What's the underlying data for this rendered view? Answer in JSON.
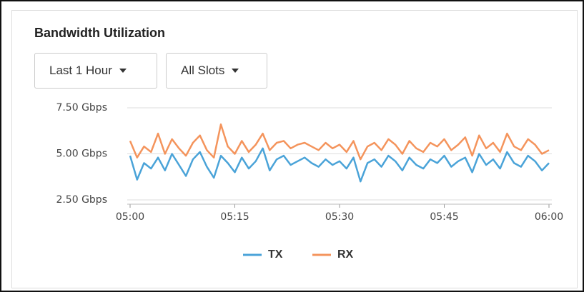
{
  "widget": {
    "title": "Bandwidth Utilization"
  },
  "controls": [
    {
      "label": "Last 1 Hour"
    },
    {
      "label": "All Slots"
    }
  ],
  "chart_data": {
    "type": "line",
    "x": [
      "05:00",
      "05:01",
      "05:02",
      "05:03",
      "05:04",
      "05:05",
      "05:06",
      "05:07",
      "05:08",
      "05:09",
      "05:10",
      "05:11",
      "05:12",
      "05:13",
      "05:14",
      "05:15",
      "05:16",
      "05:17",
      "05:18",
      "05:19",
      "05:20",
      "05:21",
      "05:22",
      "05:23",
      "05:24",
      "05:25",
      "05:26",
      "05:27",
      "05:28",
      "05:29",
      "05:30",
      "05:31",
      "05:32",
      "05:33",
      "05:34",
      "05:35",
      "05:36",
      "05:37",
      "05:38",
      "05:39",
      "05:40",
      "05:41",
      "05:42",
      "05:43",
      "05:44",
      "05:45",
      "05:46",
      "05:47",
      "05:48",
      "05:49",
      "05:50",
      "05:51",
      "05:52",
      "05:53",
      "05:54",
      "05:55",
      "05:56",
      "05:57",
      "05:58",
      "05:59",
      "06:00"
    ],
    "series": [
      {
        "name": "TX",
        "color": "#4aa3d8",
        "values": [
          4.9,
          3.6,
          4.5,
          4.2,
          4.8,
          4.1,
          5.0,
          4.4,
          3.8,
          4.7,
          5.1,
          4.3,
          3.7,
          4.9,
          4.5,
          4.0,
          4.8,
          4.2,
          4.6,
          5.3,
          4.1,
          4.7,
          4.9,
          4.4,
          4.6,
          4.8,
          4.5,
          4.3,
          4.7,
          4.4,
          4.6,
          4.2,
          4.8,
          3.5,
          4.5,
          4.7,
          4.3,
          4.9,
          4.6,
          4.1,
          4.8,
          4.4,
          4.2,
          4.7,
          4.5,
          4.9,
          4.3,
          4.6,
          4.8,
          4.0,
          5.0,
          4.4,
          4.7,
          4.2,
          5.1,
          4.5,
          4.3,
          4.9,
          4.6,
          4.1,
          4.5
        ]
      },
      {
        "name": "RX",
        "color": "#f4945c",
        "values": [
          5.7,
          4.8,
          5.4,
          5.1,
          6.1,
          5.0,
          5.8,
          5.3,
          4.9,
          5.6,
          6.0,
          5.2,
          4.8,
          6.6,
          5.4,
          5.0,
          5.7,
          5.1,
          5.5,
          6.1,
          5.2,
          5.6,
          5.7,
          5.3,
          5.5,
          5.6,
          5.4,
          5.2,
          5.6,
          5.3,
          5.5,
          5.1,
          5.7,
          4.7,
          5.4,
          5.6,
          5.2,
          5.8,
          5.5,
          5.0,
          5.7,
          5.3,
          5.1,
          5.6,
          5.4,
          5.8,
          5.2,
          5.5,
          5.9,
          4.9,
          6.0,
          5.3,
          5.6,
          5.1,
          6.1,
          5.4,
          5.2,
          5.8,
          5.5,
          5.0,
          5.2
        ]
      }
    ],
    "xlim": [
      "05:00",
      "06:00"
    ],
    "xticks": [
      "05:00",
      "05:15",
      "05:30",
      "05:45",
      "06:00"
    ],
    "ylim": [
      2.5,
      7.5
    ],
    "yticks": [
      {
        "value": 2.5,
        "label": "2.50 Gbps"
      },
      {
        "value": 5,
        "label": "5.00 Gbps"
      },
      {
        "value": 7.5,
        "label": "7.50 Gbps"
      }
    ],
    "grid": true,
    "legend": "bottom"
  }
}
